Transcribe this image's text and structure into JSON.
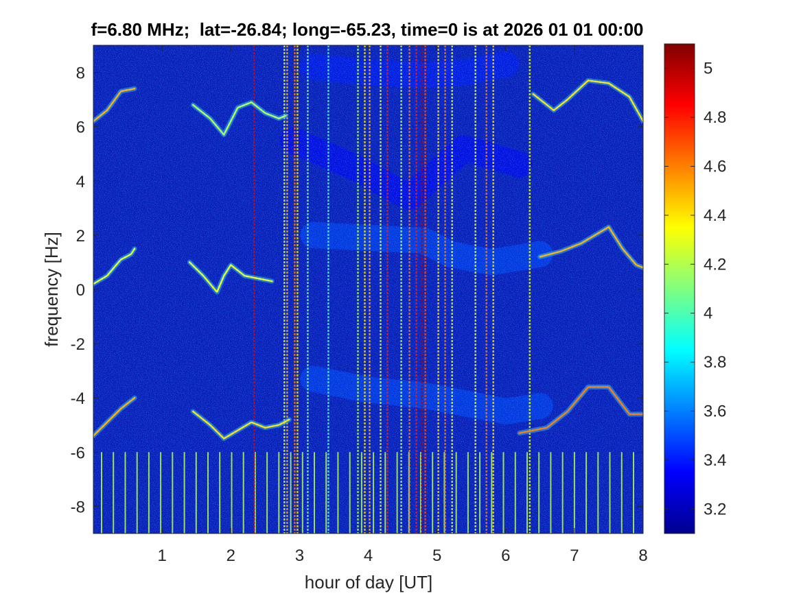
{
  "chart_data": {
    "type": "heatmap",
    "title": "f=6.80 MHz;  lat=-26.84; long=-65.23, time=0 is at 2026 01 01 00:00",
    "xlabel": "hour of day [UT]",
    "ylabel": "frequency [Hz]",
    "xlim": [
      0,
      8
    ],
    "ylim": [
      -9,
      9
    ],
    "x_ticks": [
      1,
      2,
      3,
      4,
      5,
      6,
      7,
      8
    ],
    "y_ticks": [
      -8,
      -6,
      -4,
      -2,
      0,
      2,
      4,
      6,
      8
    ],
    "colorbar": {
      "colormap": "jet",
      "clim": [
        3.1,
        5.1
      ],
      "ticks": [
        3.2,
        3.4,
        3.6,
        3.8,
        4,
        4.2,
        4.4,
        4.6,
        4.8,
        5
      ]
    },
    "background_level": 3.2,
    "traces": [
      {
        "name_hint": "upper",
        "points": [
          [
            0.0,
            6.2
          ],
          [
            0.2,
            6.6
          ],
          [
            0.4,
            7.3
          ],
          [
            0.6,
            7.4
          ]
        ],
        "level": 4.5
      },
      {
        "points": [
          [
            1.45,
            6.8
          ],
          [
            1.7,
            6.3
          ],
          [
            1.9,
            5.7
          ],
          [
            2.1,
            6.7
          ],
          [
            2.3,
            6.9
          ],
          [
            2.5,
            6.5
          ],
          [
            2.7,
            6.3
          ],
          [
            2.8,
            6.4
          ]
        ],
        "level": 4.2
      },
      {
        "points": [
          [
            6.4,
            7.2
          ],
          [
            6.7,
            6.6
          ],
          [
            6.9,
            7.0
          ],
          [
            7.2,
            7.7
          ],
          [
            7.5,
            7.6
          ],
          [
            7.8,
            7.1
          ],
          [
            8.0,
            6.2
          ]
        ],
        "level": 4.4
      },
      {
        "points": [
          [
            0.0,
            0.2
          ],
          [
            0.2,
            0.5
          ],
          [
            0.4,
            1.1
          ],
          [
            0.55,
            1.3
          ],
          [
            0.6,
            1.5
          ]
        ],
        "level": 4.3
      },
      {
        "points": [
          [
            1.4,
            1.0
          ],
          [
            1.6,
            0.5
          ],
          [
            1.8,
            -0.1
          ],
          [
            1.9,
            0.5
          ],
          [
            2.0,
            0.9
          ],
          [
            2.2,
            0.5
          ],
          [
            2.4,
            0.4
          ],
          [
            2.6,
            0.3
          ]
        ],
        "level": 4.3
      },
      {
        "points": [
          [
            6.5,
            1.2
          ],
          [
            6.8,
            1.4
          ],
          [
            7.1,
            1.7
          ],
          [
            7.3,
            2.0
          ],
          [
            7.5,
            2.3
          ],
          [
            7.7,
            1.5
          ],
          [
            7.9,
            0.9
          ],
          [
            8.0,
            0.8
          ]
        ],
        "level": 4.5
      },
      {
        "points": [
          [
            0.0,
            -5.4
          ],
          [
            0.2,
            -4.9
          ],
          [
            0.4,
            -4.4
          ],
          [
            0.6,
            -4.0
          ]
        ],
        "level": 4.5
      },
      {
        "points": [
          [
            1.45,
            -4.5
          ],
          [
            1.7,
            -5.0
          ],
          [
            1.9,
            -5.5
          ],
          [
            2.1,
            -5.2
          ],
          [
            2.3,
            -4.9
          ],
          [
            2.5,
            -5.1
          ],
          [
            2.7,
            -5.0
          ],
          [
            2.85,
            -4.8
          ]
        ],
        "level": 4.4
      },
      {
        "points": [
          [
            6.2,
            -5.3
          ],
          [
            6.6,
            -5.1
          ],
          [
            6.9,
            -4.5
          ],
          [
            7.2,
            -3.6
          ],
          [
            7.5,
            -3.6
          ],
          [
            7.8,
            -4.6
          ],
          [
            8.0,
            -4.6
          ]
        ],
        "level": 4.6
      }
    ],
    "bands": [
      {
        "points": [
          [
            3.2,
            2.0
          ],
          [
            4.0,
            1.9
          ],
          [
            4.8,
            1.8
          ],
          [
            5.2,
            1.3
          ],
          [
            5.8,
            1.0
          ],
          [
            6.5,
            1.3
          ]
        ],
        "level": 3.5
      },
      {
        "points": [
          [
            3.2,
            -3.3
          ],
          [
            4.0,
            -3.7
          ],
          [
            4.8,
            -3.9
          ],
          [
            5.4,
            -4.2
          ],
          [
            6.0,
            -4.5
          ],
          [
            6.5,
            -4.3
          ]
        ],
        "level": 3.5
      },
      {
        "points": [
          [
            3.2,
            8.2
          ],
          [
            4.0,
            8.0
          ],
          [
            4.8,
            7.9
          ],
          [
            5.4,
            8.0
          ],
          [
            6.0,
            8.3
          ]
        ],
        "level": 3.4
      },
      {
        "points": [
          [
            2.9,
            5.5
          ],
          [
            3.8,
            4.5
          ],
          [
            4.6,
            3.4
          ],
          [
            5.4,
            5.2
          ],
          [
            6.2,
            4.6
          ]
        ],
        "level": 3.35
      }
    ],
    "vertical_streaks": [
      {
        "x": 2.34,
        "level": 4.9
      },
      {
        "x": 2.78,
        "level": 4.3
      },
      {
        "x": 2.82,
        "level": 4.5
      },
      {
        "x": 2.93,
        "level": 4.6
      },
      {
        "x": 2.97,
        "level": 4.4
      },
      {
        "x": 3.12,
        "level": 4.1
      },
      {
        "x": 3.42,
        "level": 4.0
      },
      {
        "x": 3.85,
        "level": 4.2
      },
      {
        "x": 3.95,
        "level": 4.4
      },
      {
        "x": 4.02,
        "level": 4.5
      },
      {
        "x": 4.18,
        "level": 4.3
      },
      {
        "x": 4.28,
        "level": 4.8
      },
      {
        "x": 4.48,
        "level": 4.2
      },
      {
        "x": 4.6,
        "level": 4.6
      },
      {
        "x": 4.7,
        "level": 4.8
      },
      {
        "x": 4.78,
        "level": 5.0
      },
      {
        "x": 4.83,
        "level": 4.7
      },
      {
        "x": 5.02,
        "level": 4.4
      },
      {
        "x": 5.12,
        "level": 4.6
      },
      {
        "x": 5.22,
        "level": 4.3
      },
      {
        "x": 5.56,
        "level": 4.3
      },
      {
        "x": 5.72,
        "level": 4.6
      },
      {
        "x": 5.82,
        "level": 4.4
      },
      {
        "x": 6.35,
        "level": 4.3
      }
    ],
    "lower_comb": {
      "x_start": 0.12,
      "x_step": 0.172,
      "y_top": -6.0,
      "level": 4.2
    }
  }
}
